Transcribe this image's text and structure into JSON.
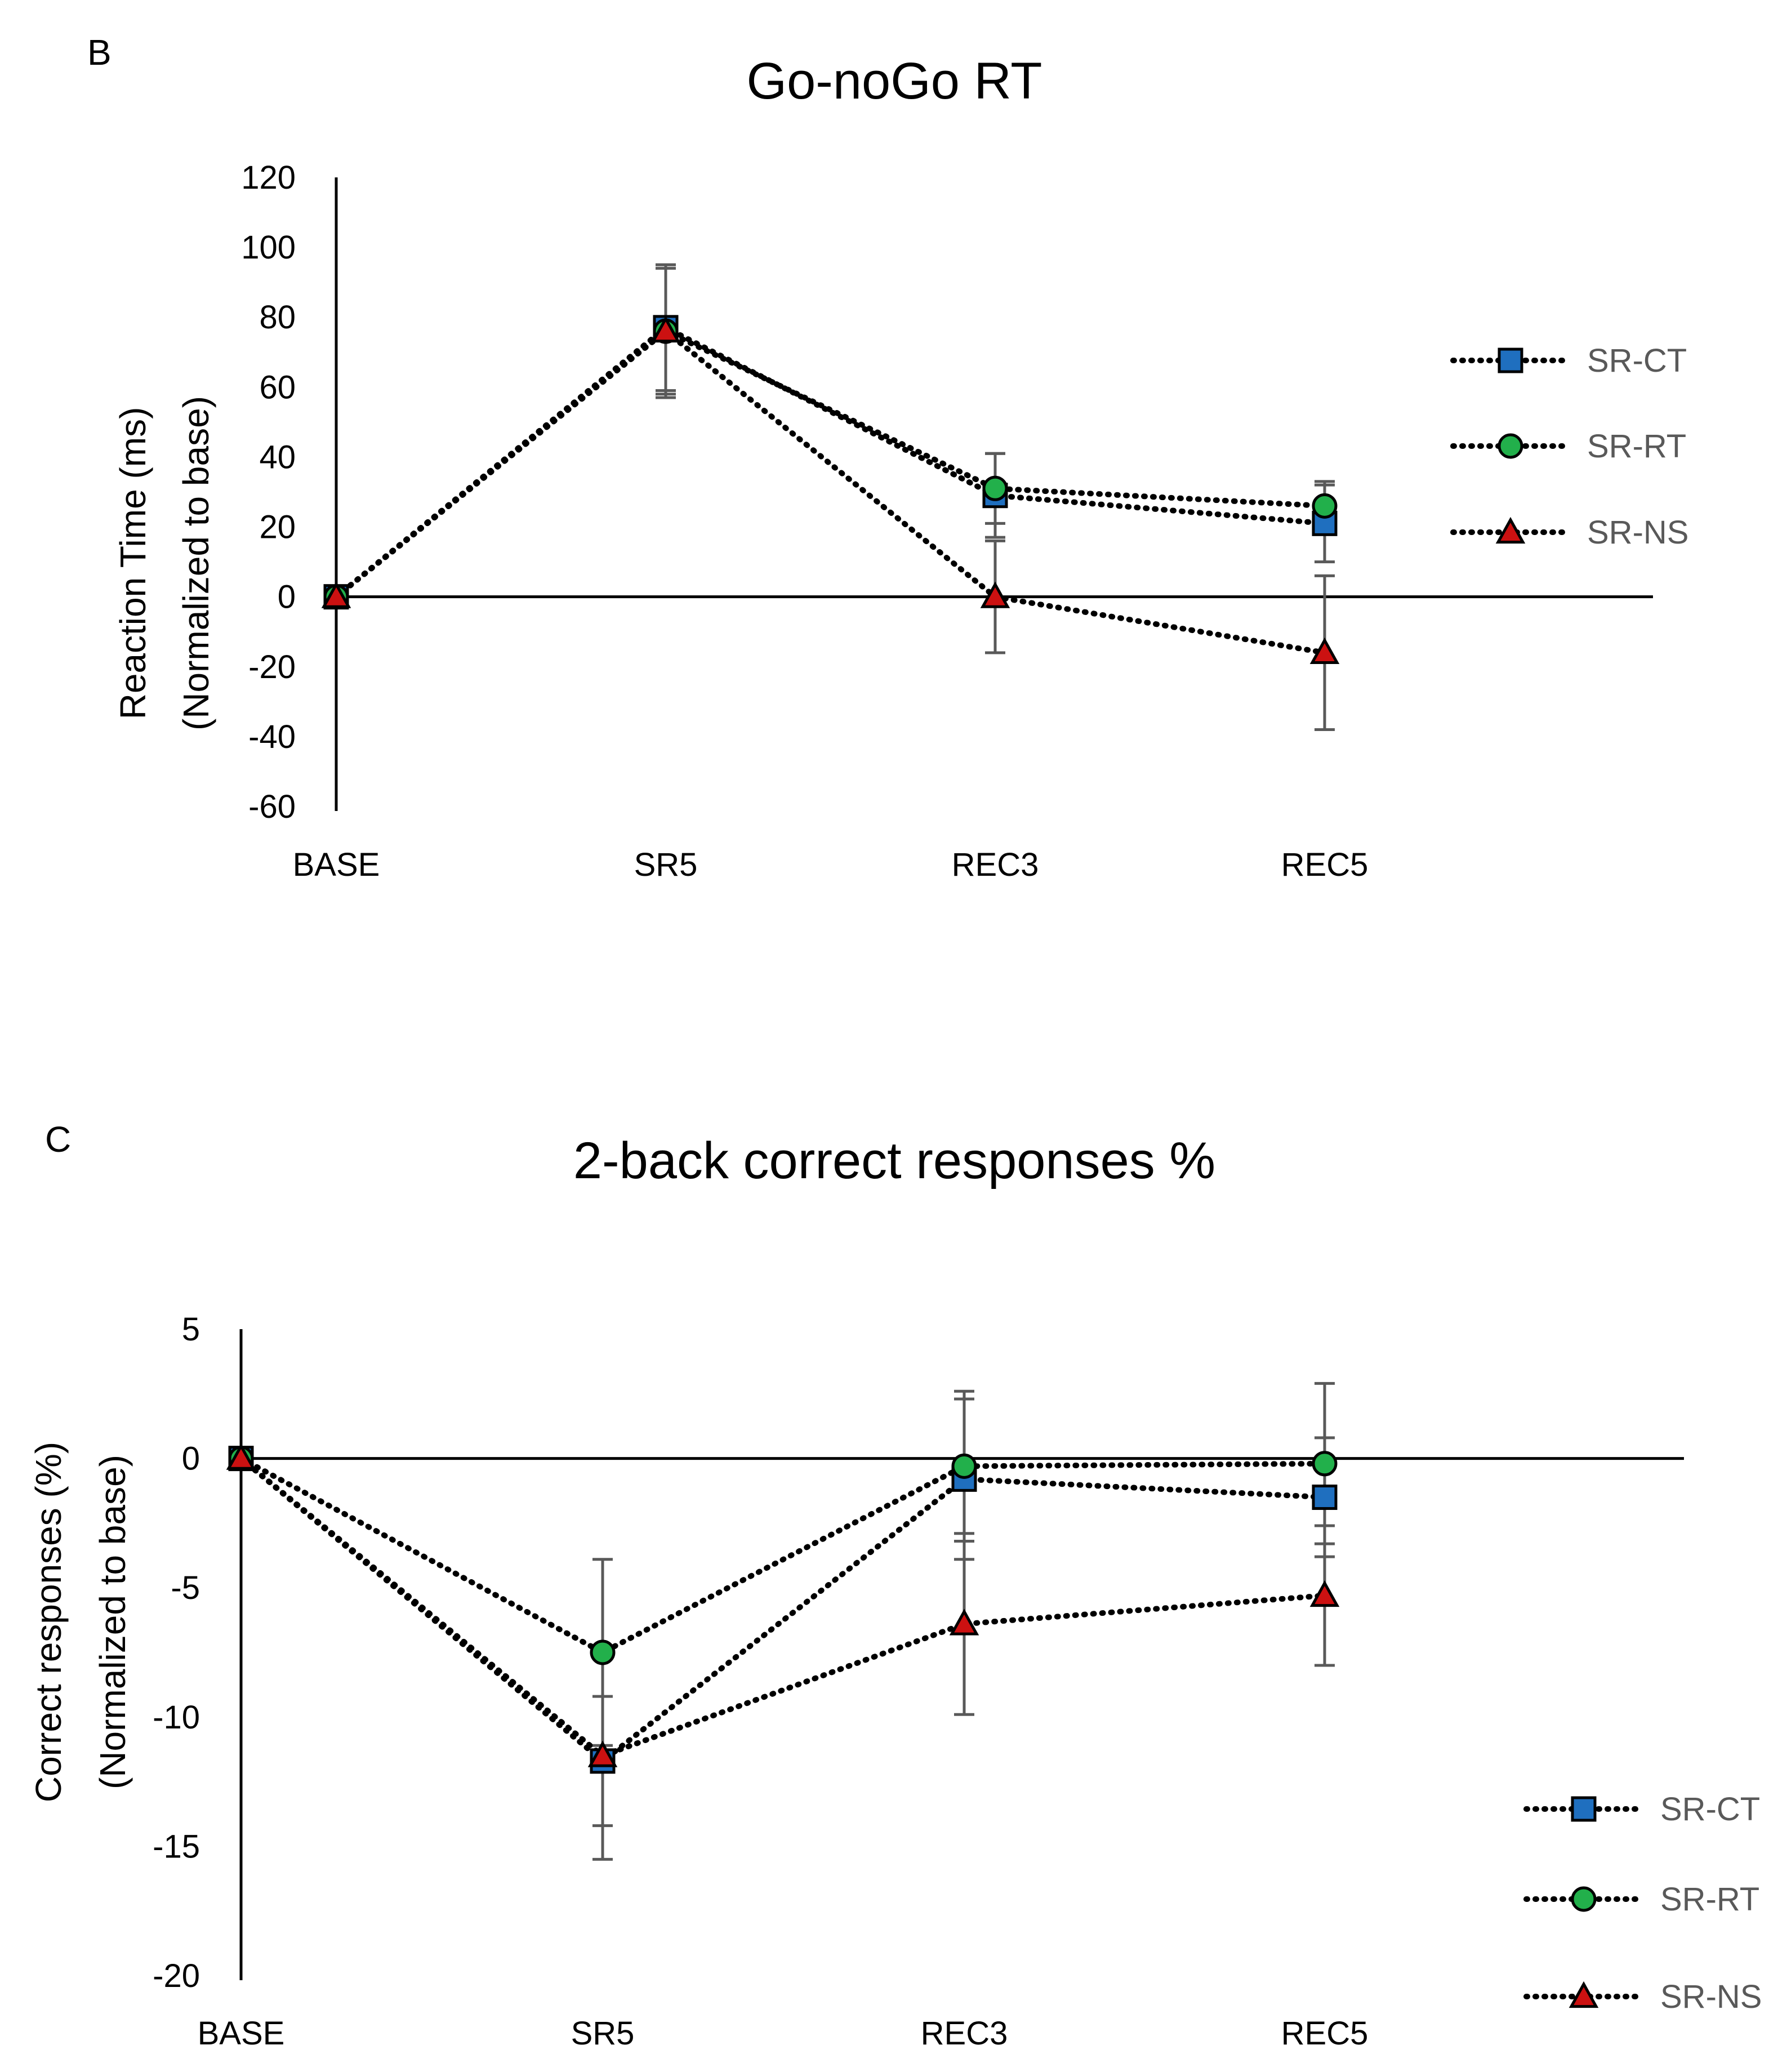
{
  "chart_data": [
    {
      "type": "line",
      "panel": "B",
      "title": "Go-noGo RT",
      "xlabel": "",
      "ylabel_lines": [
        "Reaction Time (ms)",
        "(Normalized to base)"
      ],
      "categories": [
        "BASE",
        "SR5",
        "REC3",
        "REC5"
      ],
      "ylim": [
        -60,
        120
      ],
      "yticks": [
        120,
        100,
        80,
        60,
        40,
        20,
        0,
        -20,
        -40,
        -60
      ],
      "grid": false,
      "legend_position": "right",
      "series": [
        {
          "name": "SR-CT",
          "marker": "square",
          "color": "#1f6fbf",
          "values": [
            0,
            77,
            29,
            21
          ],
          "errors": [
            0,
            18,
            12,
            11
          ]
        },
        {
          "name": "SR-RT",
          "marker": "circle",
          "color": "#22b04b",
          "values": [
            0,
            76,
            31,
            26
          ],
          "errors": [
            0,
            18,
            10,
            7
          ]
        },
        {
          "name": "SR-NS",
          "marker": "triangle",
          "color": "#cc1111",
          "values": [
            0,
            76,
            0,
            -16
          ],
          "errors": [
            0,
            19,
            16,
            22
          ]
        }
      ]
    },
    {
      "type": "line",
      "panel": "C",
      "title": "2-back correct responses %",
      "xlabel": "",
      "ylabel_lines": [
        "Correct responses (%)",
        "(Normalized to base)"
      ],
      "categories": [
        "BASE",
        "SR5",
        "REC3",
        "REC5"
      ],
      "ylim": [
        -20,
        5
      ],
      "yticks": [
        5,
        0,
        -5,
        -10,
        -15,
        -20
      ],
      "grid": false,
      "legend_position": "bottom-right",
      "series": [
        {
          "name": "SR-CT",
          "marker": "square",
          "color": "#1f6fbf",
          "values": [
            0,
            -11.7,
            -0.8,
            -1.5
          ],
          "errors": [
            0,
            2.5,
            3.1,
            2.3
          ]
        },
        {
          "name": "SR-RT",
          "marker": "circle",
          "color": "#22b04b",
          "values": [
            0,
            -7.5,
            -0.3,
            -0.2
          ],
          "errors": [
            0,
            3.6,
            2.9,
            3.1
          ]
        },
        {
          "name": "SR-NS",
          "marker": "triangle",
          "color": "#cc1111",
          "values": [
            0,
            -11.5,
            -6.4,
            -5.3
          ],
          "errors": [
            0,
            4.0,
            3.5,
            2.7
          ]
        }
      ]
    }
  ]
}
